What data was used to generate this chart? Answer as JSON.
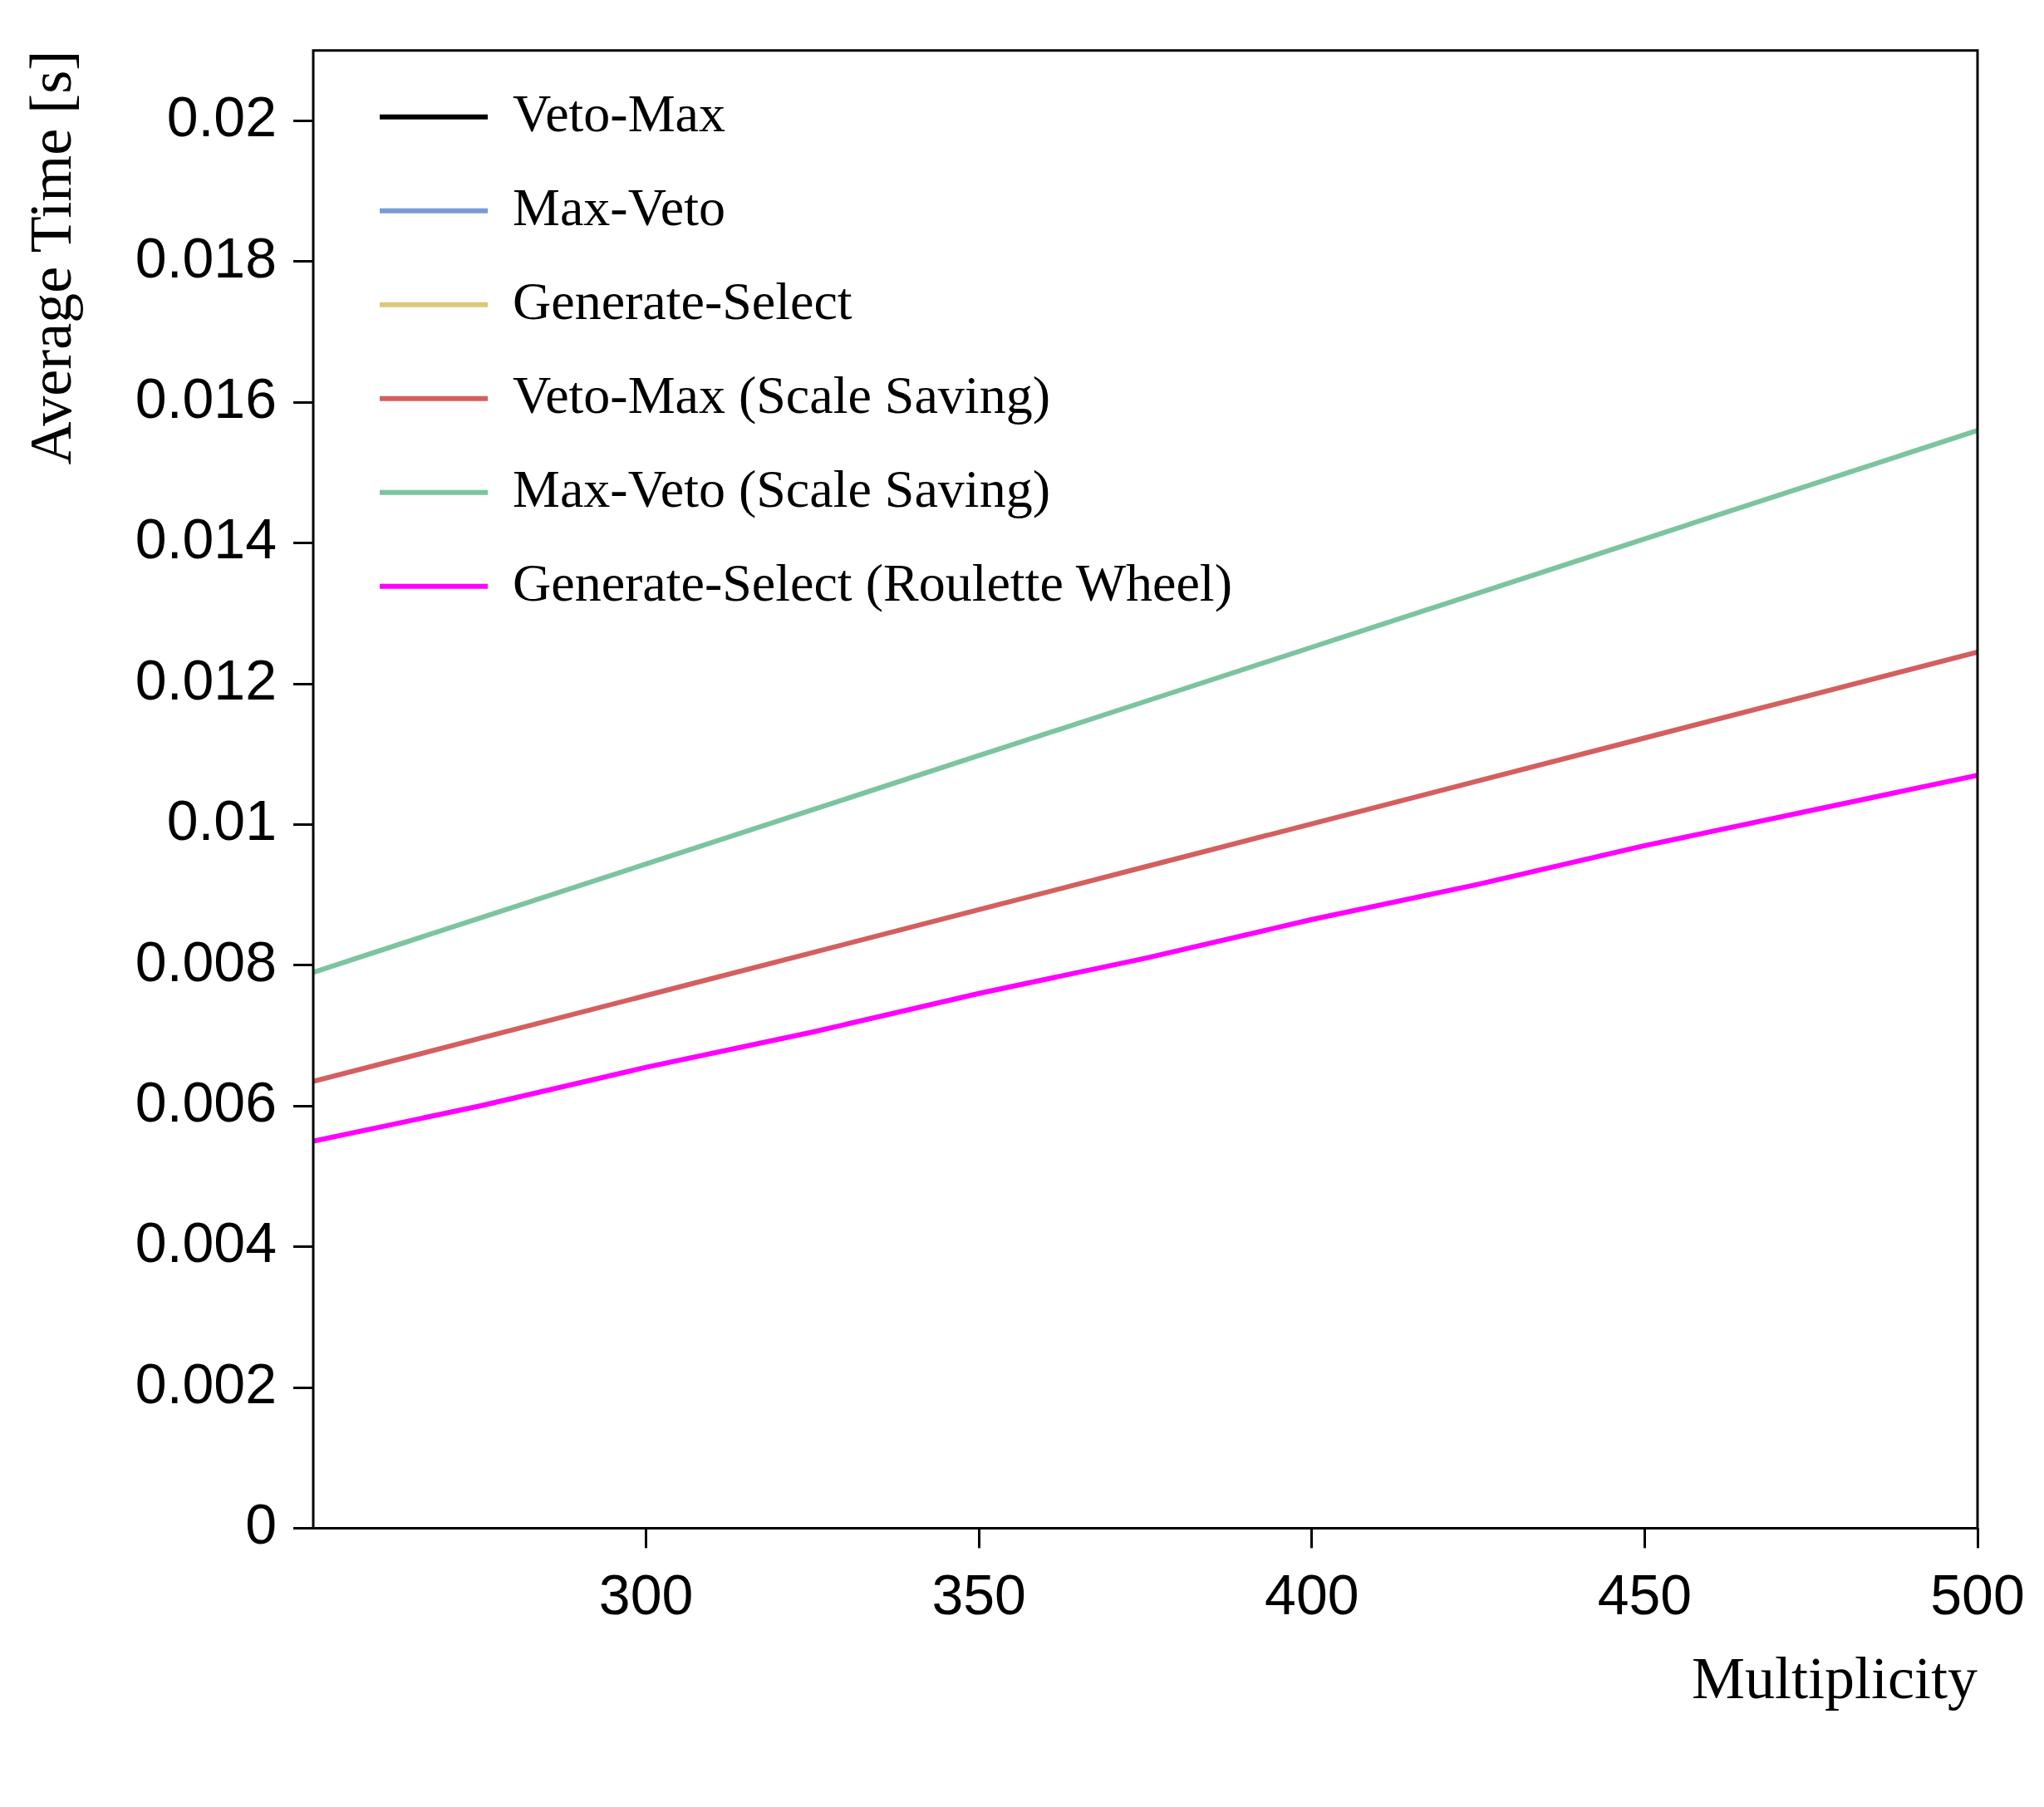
{
  "chart_data": {
    "type": "line",
    "xlabel": "Multiplicity",
    "ylabel": "Average Time [s]",
    "x": [
      250,
      275,
      300,
      325,
      350,
      375,
      400,
      425,
      450,
      475,
      500
    ],
    "xlim": [
      250,
      500
    ],
    "xticks": [
      300,
      350,
      400,
      450,
      500
    ],
    "ylim": [
      0,
      0.021
    ],
    "yticks": [
      0,
      0.002,
      0.004,
      0.006,
      0.008,
      0.01,
      0.012,
      0.014,
      0.016,
      0.018,
      0.02
    ],
    "grid": false,
    "legend": "top left",
    "marker": "none",
    "line_style": "solid",
    "series": [
      {
        "name": "Veto-Max",
        "color": "#000000",
        "values": [
          null,
          null,
          null,
          null,
          null,
          null,
          null,
          null,
          null,
          null,
          null
        ]
      },
      {
        "name": "Max-Veto",
        "color": "#7b9bd6",
        "values": [
          null,
          null,
          null,
          null,
          null,
          null,
          null,
          null,
          null,
          null,
          null
        ]
      },
      {
        "name": "Generate-Select",
        "color": "#d8c97c",
        "values": [
          null,
          null,
          null,
          null,
          null,
          null,
          null,
          null,
          null,
          null,
          null
        ]
      },
      {
        "name": "Veto-Max (Scale Saving)",
        "color": "#d45f5f",
        "values": [
          0.00635,
          0.00696,
          0.00757,
          0.00818,
          0.00879,
          0.0094,
          0.01001,
          0.01062,
          0.01123,
          0.01184,
          0.01245
        ]
      },
      {
        "name": "Max-Veto (Scale Saving)",
        "color": "#7cc4a0",
        "values": [
          0.0079,
          0.00867,
          0.00944,
          0.01021,
          0.01098,
          0.01175,
          0.01252,
          0.01329,
          0.01406,
          0.01483,
          0.0156
        ]
      },
      {
        "name": "Generate-Select (Roulette Wheel)",
        "color": "#ff00ff",
        "values": [
          0.0055,
          0.006,
          0.00655,
          0.00705,
          0.0076,
          0.0081,
          0.00865,
          0.00915,
          0.0097,
          0.0102,
          0.0107
        ]
      }
    ]
  }
}
